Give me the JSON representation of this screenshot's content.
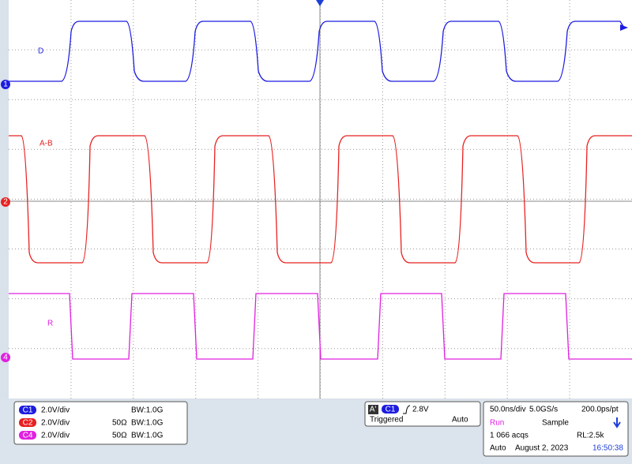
{
  "traces": [
    {
      "label": "D",
      "marker": "1"
    },
    {
      "label": "A-B",
      "marker": "2"
    },
    {
      "label": "R",
      "marker": "4"
    }
  ],
  "channels": [
    {
      "badge": "C1",
      "scale": "2.0V/div",
      "bandwidth": "BW:1.0G"
    },
    {
      "badge": "C2",
      "scale": "2.0V/div",
      "termination": "50Ω",
      "bandwidth": "BW:1.0G"
    },
    {
      "badge": "C4",
      "scale": "2.0V/div",
      "termination": "50Ω",
      "bandwidth": "BW:1.0G"
    }
  ],
  "trigger": {
    "icon": "A'",
    "source": "C1",
    "level": "2.8V",
    "state": "Triggered",
    "mode": "Auto"
  },
  "acquisition": {
    "timebase": "50.0ns/div",
    "sample_rate": "5.0GS/s",
    "resolution": "200.0ps/pt",
    "status": "Run",
    "mode": "Sample",
    "count": "1 066 acqs",
    "record_length": "RL:2.5k",
    "trigger_mode": "Auto",
    "date": "August 2, 2023",
    "time": "16:50:38"
  }
}
